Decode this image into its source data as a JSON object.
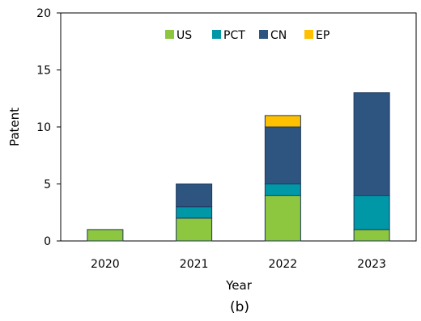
{
  "chart_data": {
    "type": "bar",
    "stacked": true,
    "categories": [
      "2020",
      "2021",
      "2022",
      "2023"
    ],
    "series": [
      {
        "name": "US",
        "color": "#8dc63f",
        "values": [
          1,
          2,
          4,
          1
        ]
      },
      {
        "name": "PCT",
        "color": "#0097a7",
        "values": [
          0,
          1,
          1,
          3
        ]
      },
      {
        "name": "CN",
        "color": "#2e5580",
        "values": [
          0,
          2,
          5,
          9
        ]
      },
      {
        "name": "EP",
        "color": "#ffc000",
        "values": [
          0,
          0,
          1,
          0
        ]
      }
    ],
    "xlabel": "Year",
    "ylabel": "Patent",
    "ylim": [
      0,
      20
    ],
    "yticks": [
      0,
      5,
      10,
      15,
      20
    ],
    "grid": false,
    "legend_position": "top-center",
    "caption": "(b)"
  }
}
